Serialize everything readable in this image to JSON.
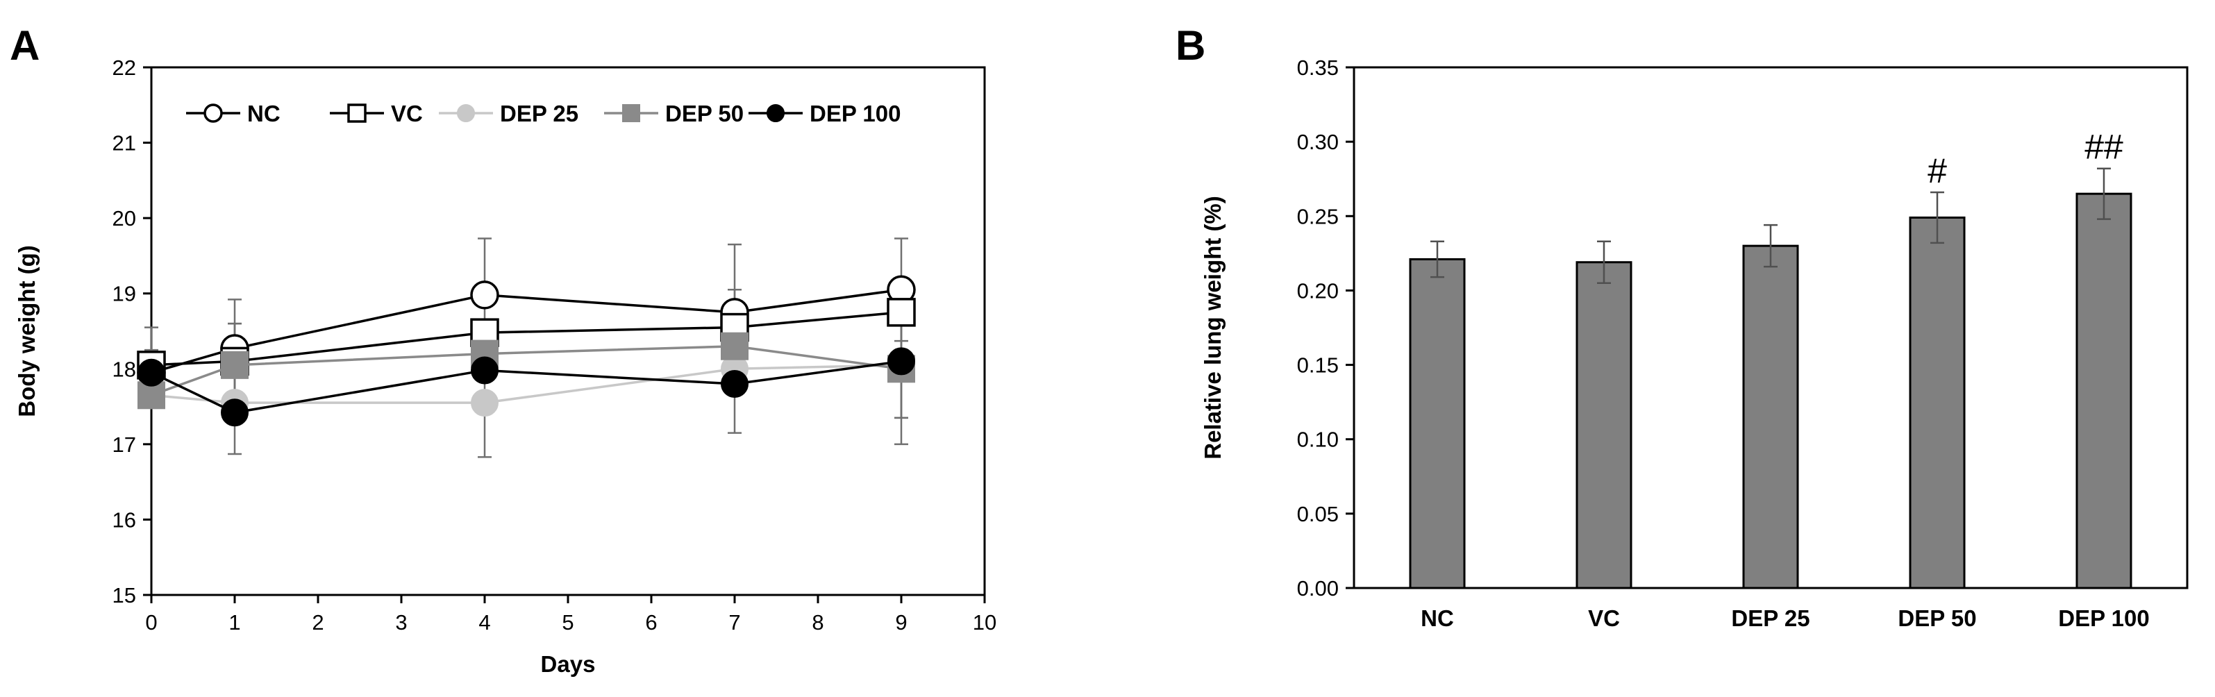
{
  "chart_data": [
    {
      "panel_label": "A",
      "type": "line",
      "title": "",
      "xlabel": "Days",
      "ylabel": "Body weight (g)",
      "xlim": [
        0,
        10
      ],
      "ylim": [
        15,
        22
      ],
      "xticks": [
        0,
        1,
        2,
        3,
        4,
        5,
        6,
        7,
        8,
        9,
        10
      ],
      "yticks": [
        15,
        16,
        17,
        18,
        19,
        20,
        21,
        22
      ],
      "grid": false,
      "legend_position": "top",
      "x": [
        0,
        1,
        4,
        7,
        9
      ],
      "series": [
        {
          "name": "NC",
          "marker": "circle-open",
          "color": "#000000",
          "values": [
            17.95,
            18.27,
            18.98,
            18.75,
            19.05
          ],
          "errors": [
            0.3,
            0.65,
            0.75,
            0.9,
            0.68
          ]
        },
        {
          "name": "VC",
          "marker": "square-open",
          "color": "#000000",
          "values": [
            18.05,
            18.1,
            18.48,
            18.55,
            18.75
          ],
          "errors": [
            0.5,
            0.5,
            0.0,
            0.5,
            0.0
          ]
        },
        {
          "name": "DEP 25",
          "marker": "circle-filled",
          "color": "#c8c8c8",
          "values": [
            17.65,
            17.55,
            17.55,
            18.0,
            18.05
          ],
          "errors": [
            0.0,
            0.0,
            0.72,
            0.0,
            0.7
          ]
        },
        {
          "name": "DEP 50",
          "marker": "square-filled",
          "color": "#8a8a8a",
          "values": [
            17.65,
            18.05,
            18.2,
            18.3,
            18.0
          ],
          "errors": [
            0.0,
            0.55,
            0.0,
            0.0,
            0.65
          ]
        },
        {
          "name": "DEP 100",
          "marker": "circle-filled",
          "color": "#000000",
          "values": [
            17.95,
            17.42,
            17.98,
            17.8,
            18.1
          ],
          "errors": [
            0.0,
            0.55,
            0.0,
            0.65,
            1.1
          ]
        }
      ]
    },
    {
      "panel_label": "B",
      "type": "bar",
      "title": "",
      "xlabel": "",
      "ylabel": "Relative lung weight (%)",
      "ylim": [
        0,
        0.35
      ],
      "yticks": [
        "0.00",
        "0.05",
        "0.10",
        "0.15",
        "0.20",
        "0.25",
        "0.30",
        "0.35"
      ],
      "grid": false,
      "categories": [
        "NC",
        "VC",
        "DEP 25",
        "DEP 50",
        "DEP 100"
      ],
      "values": [
        0.221,
        0.219,
        0.23,
        0.249,
        0.265
      ],
      "errors": [
        0.012,
        0.014,
        0.014,
        0.017,
        0.017
      ],
      "annotations": [
        "",
        "",
        "",
        "#",
        "##"
      ],
      "bar_color": "#808080"
    }
  ]
}
